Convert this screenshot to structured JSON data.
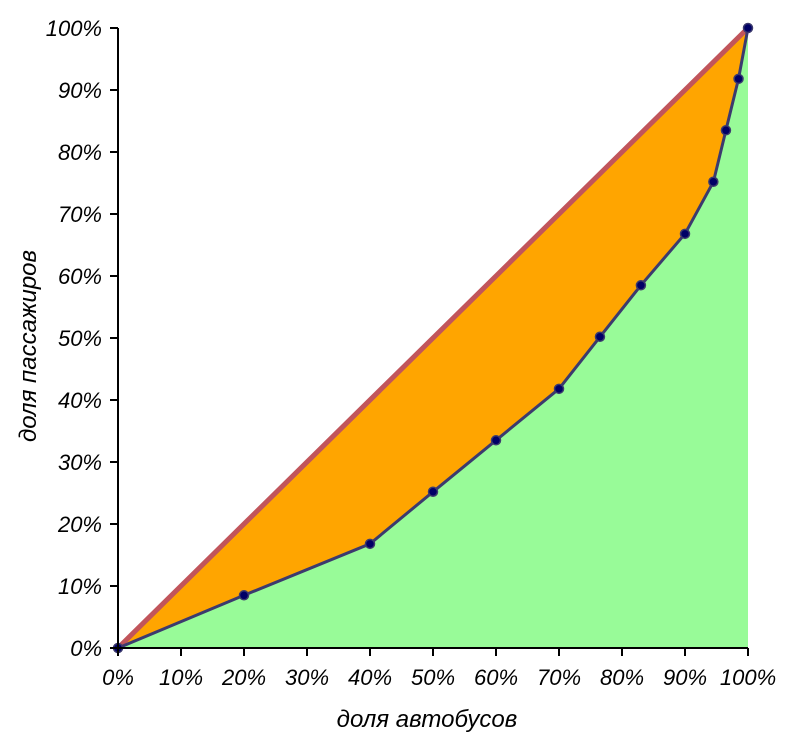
{
  "chart_data": {
    "type": "area",
    "title": "",
    "xlabel": "доля автобусов",
    "ylabel": "доля пассажиров",
    "xlim": [
      0,
      100
    ],
    "ylim": [
      0,
      100
    ],
    "x_ticks": [
      "0%",
      "10%",
      "20%",
      "30%",
      "40%",
      "50%",
      "60%",
      "70%",
      "80%",
      "90%",
      "100%"
    ],
    "y_ticks": [
      "0%",
      "10%",
      "20%",
      "30%",
      "40%",
      "50%",
      "60%",
      "70%",
      "80%",
      "90%",
      "100%"
    ],
    "tick_values": [
      0,
      10,
      20,
      30,
      40,
      50,
      60,
      70,
      80,
      90,
      100
    ],
    "grid": false,
    "legend": "none",
    "series": [
      {
        "kind": "equality-line",
        "x": [
          0,
          100
        ],
        "y": [
          0,
          100
        ]
      },
      {
        "kind": "lorenz-curve",
        "x": [
          0,
          20,
          40,
          50,
          60,
          70,
          76.5,
          83,
          90,
          94.5,
          96.5,
          98.5,
          100
        ],
        "y": [
          0,
          8.5,
          16.8,
          25.2,
          33.5,
          41.8,
          50.2,
          58.5,
          66.8,
          75.2,
          83.5,
          91.8,
          100
        ]
      }
    ],
    "colors": {
      "inequality_area": "#ffa500",
      "under_curve_area": "#98fb98",
      "equality_line": "#c1555b",
      "curve_line": "#3c3a6e",
      "marker_fill": "#000066",
      "axis": "#000000"
    }
  }
}
